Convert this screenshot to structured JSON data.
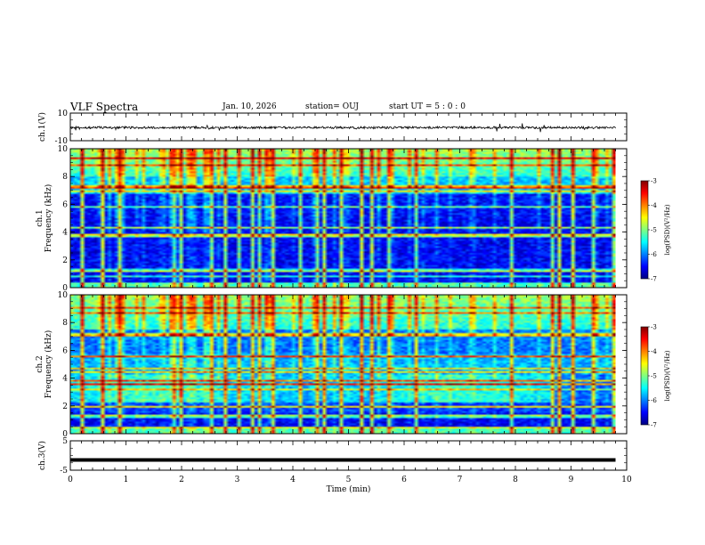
{
  "header": {
    "title": "VLF Spectra",
    "date": "Jan. 10, 2026",
    "station": "station= OUJ",
    "start": "start UT =  5 : 0 : 0"
  },
  "chart_data": [
    {
      "type": "line",
      "panel": "ch1-waveform",
      "ylabel": "ch.1(V)",
      "yticks": [
        "10",
        "-10"
      ],
      "ylim": [
        -10,
        10
      ],
      "xlim": [
        0,
        10
      ],
      "baseline": 0,
      "description": "noisy waveform around -0.5 V with occasional spikes"
    },
    {
      "type": "heatmap",
      "panel": "ch1-spectrogram",
      "ylabel": "ch.1\nFrequency (kHz)",
      "ylabel_lines": [
        "ch.1",
        "Frequency (kHz)"
      ],
      "yticks": [
        "0",
        "2",
        "4",
        "6",
        "8",
        "10"
      ],
      "ylim": [
        0,
        10
      ],
      "xlim": [
        0,
        9.8
      ],
      "colorbar": {
        "label": "log(PSD)(V²/Hz)",
        "ticks": [
          "-3",
          "-4",
          "-5",
          "-6",
          "-7"
        ],
        "range": [
          -7,
          -3
        ]
      }
    },
    {
      "type": "heatmap",
      "panel": "ch2-spectrogram",
      "ylabel": "ch.2\nFrequency (kHz)",
      "ylabel_lines": [
        "ch.2",
        "Frequency (kHz)"
      ],
      "yticks": [
        "0",
        "2",
        "4",
        "6",
        "8",
        "10"
      ],
      "ylim": [
        0,
        10
      ],
      "xlim": [
        0,
        9.8
      ],
      "colorbar": {
        "label": "log(PSD)(V²/Hz)",
        "ticks": [
          "-3",
          "-4",
          "-5",
          "-6",
          "-7"
        ],
        "range": [
          -7,
          -3
        ]
      }
    },
    {
      "type": "line",
      "panel": "ch3-waveform",
      "ylabel": "ch.3(V)",
      "yticks": [
        "5",
        "-5"
      ],
      "ylim": [
        -5,
        5
      ],
      "xlim": [
        0,
        10
      ],
      "baseline": -1.5,
      "description": "flat thick line at about -1.5 V"
    }
  ],
  "xaxis": {
    "label": "Time (min)",
    "ticks": [
      "0",
      "1",
      "2",
      "3",
      "4",
      "5",
      "6",
      "7",
      "8",
      "9",
      "10"
    ],
    "range": [
      0,
      10
    ]
  },
  "colors": {
    "colormap": [
      "#000080",
      "#0000ff",
      "#0080ff",
      "#00ffff",
      "#80ff80",
      "#ffff00",
      "#ff8000",
      "#ff0000",
      "#800000"
    ]
  }
}
